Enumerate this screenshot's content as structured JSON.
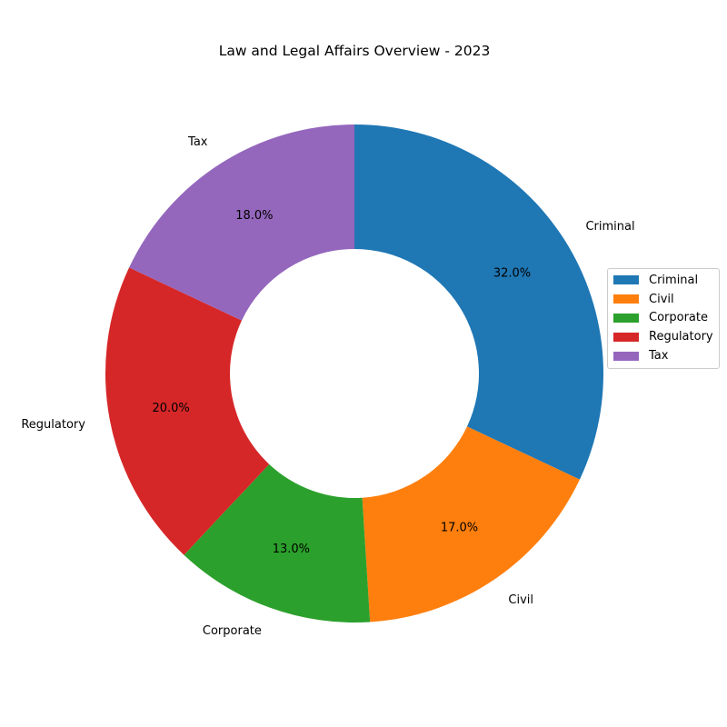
{
  "chart_data": {
    "type": "pie",
    "style": "donut",
    "title": "Law and Legal Affairs Overview - 2023",
    "categories": [
      "Criminal",
      "Civil",
      "Corporate",
      "Regulatory",
      "Tax"
    ],
    "values": [
      32.0,
      17.0,
      13.0,
      20.0,
      18.0
    ],
    "percent_labels": [
      "32.0%",
      "17.0%",
      "13.0%",
      "20.0%",
      "18.0%"
    ],
    "colors": [
      "#1f77b4",
      "#ff7f0e",
      "#2ca02c",
      "#d62728",
      "#9467bd"
    ],
    "start_angle_deg": 90,
    "direction": "clockwise",
    "legend": {
      "placement": "right",
      "entries": [
        "Criminal",
        "Civil",
        "Corporate",
        "Regulatory",
        "Tax"
      ]
    }
  }
}
